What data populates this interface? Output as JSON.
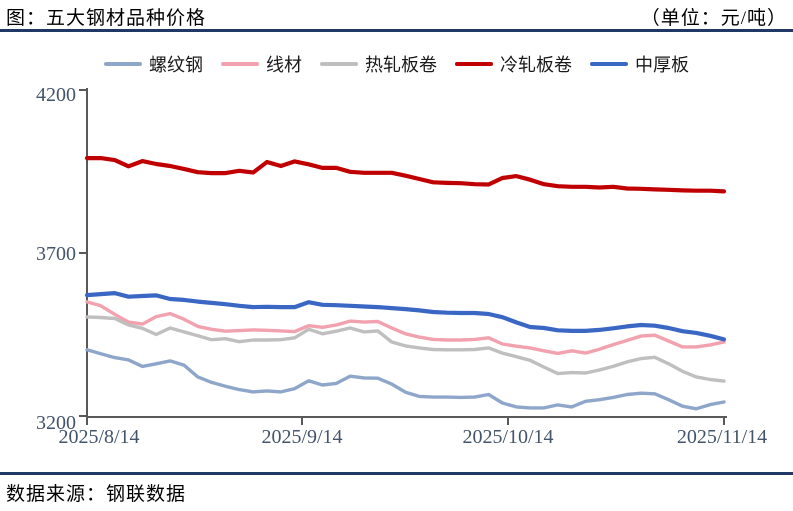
{
  "header": {
    "title": "图：五大钢材品种价格",
    "unit": "（单位：元/吨）"
  },
  "footer": {
    "source": "数据来源：钢联数据"
  },
  "colors": {
    "divider_navy": "#1f3864",
    "axis_gray": "#595959",
    "tick_label": "#44546a"
  },
  "chart_data": {
    "type": "line",
    "title": "五大钢材品种价格",
    "unit_label": "元/吨",
    "legend_position": "top",
    "grid": false,
    "y_axis": {
      "range": [
        3200,
        4200
      ],
      "ticks": [
        4200,
        3700,
        3200
      ],
      "tick_labels": [
        "4200",
        "3700",
        "3200"
      ]
    },
    "x_axis": {
      "tick_labels": [
        "2025/8/14",
        "2025/9/14",
        "2025/10/14",
        "2025/11/14"
      ],
      "range_days": [
        0,
        92
      ]
    },
    "x_days": [
      0,
      2,
      4,
      6,
      8,
      10,
      12,
      14,
      16,
      18,
      20,
      22,
      24,
      26,
      28,
      30,
      32,
      34,
      36,
      38,
      40,
      42,
      44,
      46,
      48,
      50,
      52,
      54,
      56,
      58,
      60,
      62,
      64,
      66,
      68,
      70,
      72,
      74,
      76,
      78,
      80,
      82,
      84,
      86,
      88,
      90,
      92
    ],
    "series": [
      {
        "name": "螺纹钢",
        "color": "#8fa6cb",
        "width": 3.4,
        "values": [
          3403,
          3391,
          3379,
          3372,
          3352,
          3360,
          3369,
          3356,
          3320,
          3303,
          3291,
          3281,
          3274,
          3277,
          3274,
          3284,
          3308,
          3295,
          3300,
          3322,
          3317,
          3316,
          3298,
          3273,
          3260,
          3258,
          3258,
          3257,
          3258,
          3266,
          3240,
          3228,
          3225,
          3225,
          3234,
          3228,
          3245,
          3250,
          3257,
          3266,
          3270,
          3268,
          3250,
          3230,
          3222,
          3235,
          3243
        ]
      },
      {
        "name": "线材",
        "color": "#f2a1ae",
        "width": 3.4,
        "values": [
          3550,
          3538,
          3512,
          3488,
          3482,
          3505,
          3514,
          3497,
          3475,
          3466,
          3460,
          3462,
          3464,
          3463,
          3461,
          3459,
          3477,
          3472,
          3479,
          3491,
          3488,
          3490,
          3470,
          3452,
          3442,
          3435,
          3433,
          3433,
          3435,
          3440,
          3421,
          3414,
          3409,
          3400,
          3392,
          3400,
          3393,
          3405,
          3419,
          3432,
          3445,
          3448,
          3430,
          3412,
          3412,
          3418,
          3427
        ]
      },
      {
        "name": "热轧板卷",
        "color": "#bfbfbf",
        "width": 3.4,
        "values": [
          3504,
          3502,
          3499,
          3479,
          3469,
          3450,
          3470,
          3458,
          3446,
          3434,
          3437,
          3428,
          3433,
          3433,
          3434,
          3440,
          3466,
          3452,
          3460,
          3470,
          3458,
          3461,
          3427,
          3415,
          3409,
          3404,
          3403,
          3403,
          3404,
          3409,
          3393,
          3382,
          3371,
          3350,
          3330,
          3333,
          3332,
          3341,
          3352,
          3366,
          3376,
          3380,
          3360,
          3337,
          3320,
          3312,
          3307
        ]
      },
      {
        "name": "冷轧板卷",
        "color": "#c00000",
        "width": 4.2,
        "values": [
          3991,
          3991,
          3985,
          3966,
          3982,
          3973,
          3967,
          3958,
          3948,
          3945,
          3945,
          3952,
          3947,
          3979,
          3967,
          3981,
          3972,
          3961,
          3961,
          3949,
          3946,
          3946,
          3946,
          3937,
          3927,
          3917,
          3915,
          3914,
          3911,
          3910,
          3930,
          3936,
          3925,
          3911,
          3905,
          3903,
          3903,
          3901,
          3903,
          3898,
          3897,
          3895,
          3894,
          3892,
          3891,
          3891,
          3889
        ]
      },
      {
        "name": "中厚板",
        "color": "#3a66c4",
        "width": 4.2,
        "values": [
          3571,
          3574,
          3577,
          3566,
          3568,
          3570,
          3559,
          3556,
          3551,
          3547,
          3543,
          3538,
          3534,
          3535,
          3534,
          3534,
          3549,
          3541,
          3540,
          3538,
          3536,
          3534,
          3531,
          3528,
          3524,
          3519,
          3517,
          3516,
          3516,
          3513,
          3503,
          3487,
          3473,
          3470,
          3463,
          3461,
          3461,
          3464,
          3469,
          3475,
          3479,
          3477,
          3470,
          3460,
          3455,
          3446,
          3435
        ]
      }
    ]
  }
}
